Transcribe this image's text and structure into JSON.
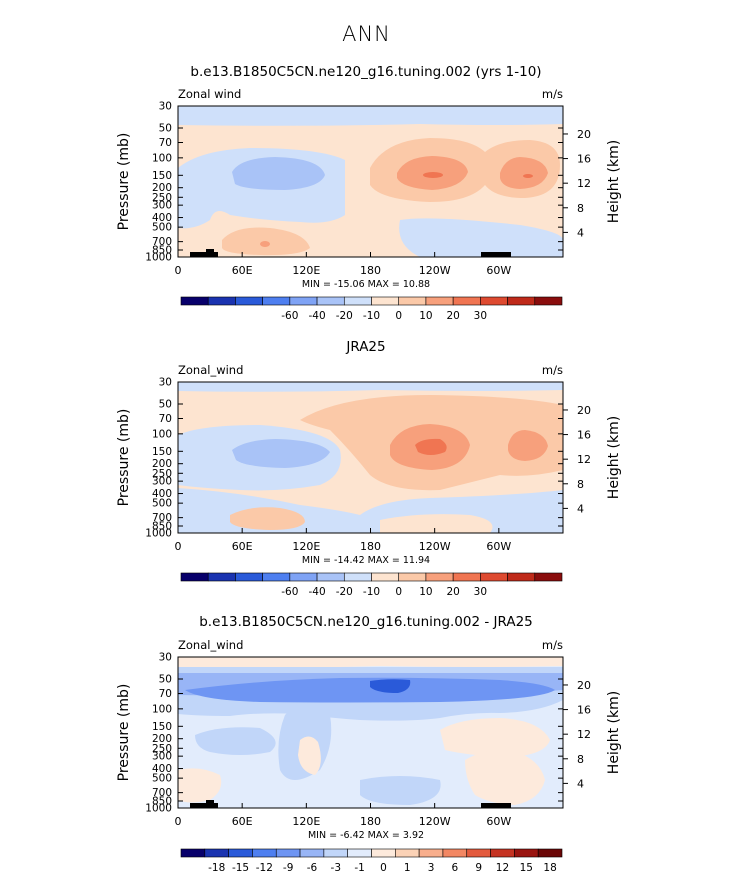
{
  "figure": {
    "title": "ANN"
  },
  "chart_data": [
    {
      "type": "heatmap",
      "title": "b.e13.B1850C5CN.ne120_g16.tuning.002 (yrs 1-10)",
      "left_label": "Zonal wind",
      "right_label": "m/s",
      "ylabel": "Pressure (mb)",
      "y2label": "Height (km)",
      "yticks": [
        "30",
        "50",
        "70",
        "100",
        "150",
        "200",
        "250",
        "300",
        "400",
        "500",
        "700",
        "850",
        "1000"
      ],
      "y2ticks": [
        "20",
        "16",
        "12",
        "8",
        "4"
      ],
      "xticks": [
        "0",
        "60E",
        "120E",
        "180",
        "120W",
        "60W"
      ],
      "stats": "MIN = -15.06   MAX =  10.88",
      "colorbar_labels": [
        "-60",
        "-40",
        "-20",
        "-10",
        "0",
        "10",
        "20",
        "30"
      ],
      "colorbar_colors": [
        "#08006b",
        "#1a33b0",
        "#2a5ad9",
        "#4e7ff0",
        "#7fa3f5",
        "#a9c3f7",
        "#cfe0fa",
        "#fde4d0",
        "#fbc9a8",
        "#f7a07c",
        "#f07552",
        "#de4a30",
        "#bf2a1a",
        "#8a0d0d"
      ]
    },
    {
      "type": "heatmap",
      "title": "JRA25",
      "left_label": "Zonal_wind",
      "right_label": "m/s",
      "ylabel": "Pressure (mb)",
      "y2label": "Height (km)",
      "yticks": [
        "30",
        "50",
        "70",
        "100",
        "150",
        "200",
        "250",
        "300",
        "400",
        "500",
        "700",
        "850",
        "1000"
      ],
      "y2ticks": [
        "20",
        "16",
        "12",
        "8",
        "4"
      ],
      "xticks": [
        "0",
        "60E",
        "120E",
        "180",
        "120W",
        "60W"
      ],
      "stats": "MIN = -14.42   MAX =  11.94",
      "colorbar_labels": [
        "-60",
        "-40",
        "-20",
        "-10",
        "0",
        "10",
        "20",
        "30"
      ],
      "colorbar_colors": [
        "#08006b",
        "#1a33b0",
        "#2a5ad9",
        "#4e7ff0",
        "#7fa3f5",
        "#a9c3f7",
        "#cfe0fa",
        "#fde4d0",
        "#fbc9a8",
        "#f7a07c",
        "#f07552",
        "#de4a30",
        "#bf2a1a",
        "#8a0d0d"
      ]
    },
    {
      "type": "heatmap",
      "title": "b.e13.B1850C5CN.ne120_g16.tuning.002 - JRA25",
      "left_label": "Zonal_wind",
      "right_label": "m/s",
      "ylabel": "Pressure (mb)",
      "y2label": "Height (km)",
      "yticks": [
        "30",
        "50",
        "70",
        "100",
        "150",
        "200",
        "250",
        "300",
        "400",
        "500",
        "700",
        "850",
        "1000"
      ],
      "y2ticks": [
        "20",
        "16",
        "12",
        "8",
        "4"
      ],
      "xticks": [
        "0",
        "60E",
        "120E",
        "180",
        "120W",
        "60W"
      ],
      "stats": "MIN =  -6.42   MAX =   3.92",
      "colorbar_labels": [
        "-18",
        "-15",
        "-12",
        "-9",
        "-6",
        "-3",
        "-1",
        "0",
        "1",
        "3",
        "6",
        "9",
        "12",
        "15",
        "18"
      ],
      "colorbar_colors": [
        "#08006b",
        "#1a33b0",
        "#2a5ad9",
        "#4e7ff0",
        "#6e95f3",
        "#98b5f6",
        "#c1d6f9",
        "#e2ecfc",
        "#fdeadc",
        "#fbd2b6",
        "#f8ae8c",
        "#f28763",
        "#e35a3d",
        "#c53322",
        "#9a1410",
        "#6a0606"
      ]
    }
  ]
}
